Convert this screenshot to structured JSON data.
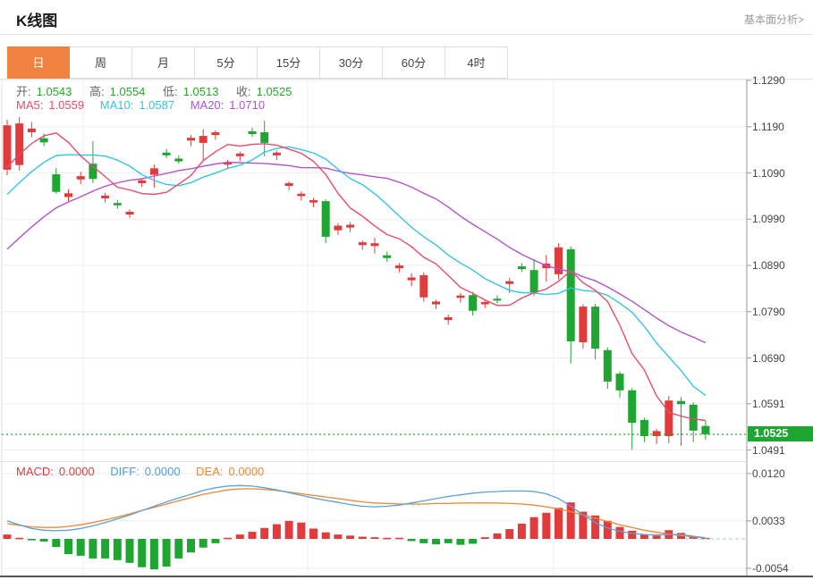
{
  "header": {
    "title": "K线图",
    "analysis_link": "基本面分析>"
  },
  "toolbar": {
    "tabs": [
      {
        "label": "日",
        "selected": true
      },
      {
        "label": "周",
        "selected": false
      },
      {
        "label": "月",
        "selected": false
      },
      {
        "label": "5分",
        "selected": false
      },
      {
        "label": "15分",
        "selected": false
      },
      {
        "label": "30分",
        "selected": false
      },
      {
        "label": "60分",
        "selected": false
      },
      {
        "label": "4时",
        "selected": false
      }
    ]
  },
  "ohlc": {
    "open_label": "开:",
    "open": "1.0543",
    "high_label": "高:",
    "high": "1.0554",
    "low_label": "低:",
    "low": "1.0513",
    "close_label": "收:",
    "close": "1.0525"
  },
  "ma": {
    "ma5_label": "MA5:",
    "ma5": "1.0559",
    "ma10_label": "MA10:",
    "ma10": "1.0587",
    "ma20_label": "MA20:",
    "ma20": "1.0710"
  },
  "macd_info": {
    "macd_label": "MACD:",
    "macd": "0.0000",
    "diff_label": "DIFF:",
    "diff": "0.0000",
    "dea_label": "DEA:",
    "dea": "0.0000"
  },
  "colors": {
    "up": "#e23b3c",
    "down": "#1fa532",
    "ma5": "#e74c6c",
    "ma10": "#36c6dc",
    "ma20": "#b254cf",
    "diff_line": "#5aa0dc",
    "dea_line": "#f08632",
    "tab_selected": "#ef8240",
    "price_badge": "#1fa532",
    "dotted_price_line": "#2aa62a",
    "zero_dash_line": "#a9c3de",
    "grid": "#ededed",
    "axis": "#999999"
  },
  "chart_data": [
    {
      "type": "candlestick",
      "interval": "日",
      "ylim": [
        1.0445,
        1.1294
      ],
      "yticks": [
        "1.1290",
        "1.1190",
        "1.1090",
        "1.0990",
        "1.0890",
        "1.0790",
        "1.0690",
        "1.0591",
        "1.0491"
      ],
      "current_price": 1.0525,
      "current_price_label": "1.0525",
      "ma_periods": [
        5,
        10,
        20
      ],
      "legend": [
        "MA5",
        "MA10",
        "MA20"
      ],
      "candles_ohlc": [
        [
          1.1097,
          1.1205,
          1.1085,
          1.1193
        ],
        [
          1.1107,
          1.1211,
          1.1095,
          1.1197
        ],
        [
          1.1178,
          1.12,
          1.1168,
          1.1186
        ],
        [
          1.1165,
          1.1175,
          1.1148,
          1.1156
        ],
        [
          1.1087,
          1.1101,
          1.1045,
          1.1049
        ],
        [
          1.1038,
          1.1055,
          1.1028,
          1.1046
        ],
        [
          1.1076,
          1.1092,
          1.1066,
          1.1083
        ],
        [
          1.111,
          1.1159,
          1.1068,
          1.1077
        ],
        [
          1.1035,
          1.1047,
          1.1026,
          1.1041
        ],
        [
          1.1025,
          1.1032,
          1.1013,
          1.102
        ],
        [
          1.1,
          1.1011,
          1.0993,
          1.1006
        ],
        [
          1.1068,
          1.1078,
          1.106,
          1.1074
        ],
        [
          1.1086,
          1.1108,
          1.1058,
          1.11
        ],
        [
          1.1134,
          1.1142,
          1.1122,
          1.1128
        ],
        [
          1.1121,
          1.1128,
          1.111,
          1.1115
        ],
        [
          1.116,
          1.1172,
          1.1148,
          1.1166
        ],
        [
          1.1155,
          1.1184,
          1.1116,
          1.117
        ],
        [
          1.1172,
          1.1182,
          1.1162,
          1.1178
        ],
        [
          1.1108,
          1.1118,
          1.1098,
          1.1112
        ],
        [
          1.1126,
          1.1136,
          1.1116,
          1.1132
        ],
        [
          1.118,
          1.1188,
          1.1168,
          1.1174
        ],
        [
          1.1178,
          1.1203,
          1.1126,
          1.1155
        ],
        [
          1.1128,
          1.1138,
          1.1118,
          1.1134
        ],
        [
          1.1062,
          1.1072,
          1.1052,
          1.1068
        ],
        [
          1.104,
          1.105,
          1.103,
          1.1045
        ],
        [
          1.1026,
          1.1036,
          1.1016,
          1.1031
        ],
        [
          1.1029,
          1.1033,
          1.0938,
          1.0952
        ],
        [
          1.0966,
          1.0982,
          1.0956,
          1.0976
        ],
        [
          1.0972,
          1.0984,
          1.0962,
          1.0978
        ],
        [
          1.0934,
          1.0944,
          1.0924,
          1.094
        ],
        [
          1.0932,
          1.095,
          1.0916,
          1.0938
        ],
        [
          1.0912,
          1.092,
          1.0898,
          1.0906
        ],
        [
          1.0884,
          1.0895,
          1.0875,
          1.089
        ],
        [
          1.0858,
          1.0873,
          1.0845,
          1.0864
        ],
        [
          1.0821,
          1.0875,
          1.0812,
          1.0869
        ],
        [
          1.0806,
          1.0816,
          1.0796,
          1.0812
        ],
        [
          1.0772,
          1.0784,
          1.0762,
          1.0778
        ],
        [
          1.082,
          1.083,
          1.081,
          1.0825
        ],
        [
          1.0826,
          1.0833,
          1.0782,
          1.0792
        ],
        [
          1.0806,
          1.0815,
          1.0798,
          1.0811
        ],
        [
          1.0818,
          1.0825,
          1.0808,
          1.0814
        ],
        [
          1.085,
          1.0863,
          1.083,
          1.0856
        ],
        [
          1.0888,
          1.0895,
          1.0876,
          1.0882
        ],
        [
          1.088,
          1.0904,
          1.0824,
          1.0832
        ],
        [
          1.0884,
          1.0913,
          1.0855,
          1.0894
        ],
        [
          1.0871,
          1.0938,
          1.086,
          1.0929
        ],
        [
          1.0925,
          1.0931,
          1.0678,
          1.0726
        ],
        [
          1.0724,
          1.0806,
          1.071,
          1.0801
        ],
        [
          1.0801,
          1.0807,
          1.0687,
          1.071
        ],
        [
          1.0707,
          1.0713,
          1.0623,
          1.0639
        ],
        [
          1.0656,
          1.0661,
          1.0604,
          1.062
        ],
        [
          1.062,
          1.0625,
          1.0492,
          1.055
        ],
        [
          1.0556,
          1.0561,
          1.0508,
          1.0521
        ],
        [
          1.0521,
          1.0537,
          1.0504,
          1.0532
        ],
        [
          1.0521,
          1.0608,
          1.0506,
          1.0598
        ],
        [
          1.0597,
          1.0605,
          1.05,
          1.059
        ],
        [
          1.0589,
          1.0594,
          1.0508,
          1.0533
        ],
        [
          1.0543,
          1.0554,
          1.0513,
          1.0525
        ]
      ]
    },
    {
      "type": "bar",
      "name": "MACD",
      "yticks": [
        "0.0120",
        "0.0033",
        "-0.0054"
      ],
      "histogram": [
        0.0008,
        0.0002,
        -0.0002,
        -0.0005,
        -0.0015,
        -0.0028,
        -0.0031,
        -0.0036,
        -0.0036,
        -0.0039,
        -0.0044,
        -0.0052,
        -0.0056,
        -0.0051,
        -0.0036,
        -0.0025,
        -0.0016,
        -0.0008,
        0.0002,
        0.0008,
        0.0013,
        0.002,
        0.0027,
        0.0033,
        0.003,
        0.0019,
        0.0012,
        0.0008,
        0.0006,
        0.0004,
        0.0003,
        0.0002,
        0.0002,
        -0.0004,
        -0.0008,
        -0.001,
        -0.0008,
        -0.0011,
        -0.0009,
        0.0003,
        0.001,
        0.0018,
        0.0028,
        0.004,
        0.0048,
        0.0057,
        0.0067,
        0.005,
        0.0043,
        0.0033,
        0.0022,
        0.0015,
        0.0008,
        0.0006,
        0.0016,
        0.0011,
        0.0005,
        0.0002
      ],
      "diff": [
        0.0033,
        0.0026,
        0.0019,
        0.0016,
        0.0015,
        0.0016,
        0.0019,
        0.0024,
        0.003,
        0.0037,
        0.0044,
        0.0052,
        0.006,
        0.0068,
        0.0075,
        0.0082,
        0.0089,
        0.0094,
        0.0097,
        0.0098,
        0.0097,
        0.0094,
        0.009,
        0.0085,
        0.008,
        0.0075,
        0.0071,
        0.0067,
        0.0063,
        0.006,
        0.0059,
        0.006,
        0.0062,
        0.0066,
        0.007,
        0.0074,
        0.0078,
        0.0081,
        0.0084,
        0.0086,
        0.0087,
        0.0088,
        0.0088,
        0.0087,
        0.0083,
        0.0074,
        0.006,
        0.0044,
        0.003,
        0.002,
        0.0014,
        0.001,
        0.0008,
        0.0007,
        0.0008,
        0.0008,
        0.0005,
        0.0002
      ],
      "dea": [
        0.0028,
        0.0025,
        0.0022,
        0.0021,
        0.0021,
        0.0023,
        0.0026,
        0.003,
        0.0035,
        0.004,
        0.0046,
        0.0052,
        0.0058,
        0.0064,
        0.007,
        0.0076,
        0.0082,
        0.0086,
        0.009,
        0.0092,
        0.0092,
        0.0091,
        0.0089,
        0.0086,
        0.0083,
        0.008,
        0.0077,
        0.0074,
        0.0071,
        0.0068,
        0.0066,
        0.0065,
        0.0064,
        0.0064,
        0.0064,
        0.0065,
        0.0065,
        0.0066,
        0.0066,
        0.0066,
        0.0066,
        0.0065,
        0.0064,
        0.0062,
        0.0059,
        0.0055,
        0.005,
        0.0044,
        0.0038,
        0.0032,
        0.0026,
        0.0021,
        0.0016,
        0.0012,
        0.0009,
        0.0006,
        0.0004,
        0.0002
      ]
    }
  ]
}
